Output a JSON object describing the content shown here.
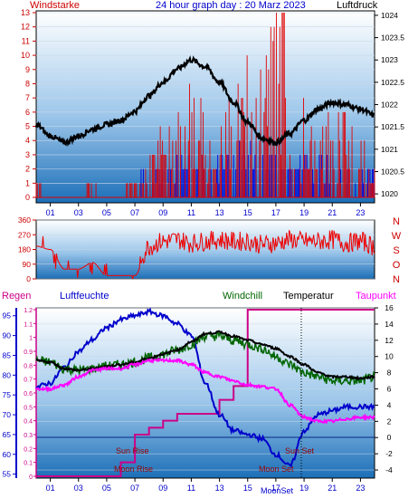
{
  "header": {
    "title": "24 hour graph day : 20 Marz 2023",
    "left_label": "Windstarke",
    "right_label": "Luftdruck"
  },
  "colors": {
    "wind_bar": "#e00000",
    "gust_bar": "#0000dd",
    "pressure": "#000000",
    "direction": "#ee0000",
    "humidity": "#0000cc",
    "temperature": "#000000",
    "windchill": "#006600",
    "dewpoint": "#ff00ff",
    "rain": "#cc0088",
    "axis_red": "#cc0000",
    "axis_blue": "#0000cc",
    "axis_magenta": "#cc0088",
    "bg_top": "#ffffff",
    "bg_bottom": "#1c6fb8"
  },
  "time_ticks": [
    "01",
    "03",
    "05",
    "07",
    "09",
    "11",
    "13",
    "15",
    "17",
    "19",
    "21",
    "23"
  ],
  "chart_data": [
    {
      "type": "line",
      "title": "24 hour graph day : 20 Marz 2023",
      "left_axis": {
        "label": "Windstarke",
        "ticks": [
          "0",
          "1",
          "2",
          "3",
          "4",
          "5",
          "6",
          "7",
          "8",
          "9",
          "10",
          "11",
          "12",
          "13"
        ],
        "range": [
          0,
          13
        ]
      },
      "right_axis": {
        "label": "Luftdruck",
        "ticks": [
          "1020",
          "1020.5",
          "1021",
          "1021.5",
          "1022",
          "1022.5",
          "1023",
          "1023.5",
          "1024"
        ],
        "range": [
          1019.8,
          1024.1
        ]
      },
      "x": [
        0,
        1,
        2,
        3,
        4,
        5,
        6,
        7,
        8,
        9,
        10,
        11,
        12,
        13,
        14,
        15,
        16,
        17,
        18,
        19,
        20,
        21,
        22,
        23,
        24
      ],
      "series": [
        {
          "name": "Luftdruck",
          "values": [
            1021.55,
            1021.3,
            1021.15,
            1021.3,
            1021.45,
            1021.55,
            1021.65,
            1021.85,
            1022.2,
            1022.5,
            1022.8,
            1023.0,
            1022.85,
            1022.5,
            1022.05,
            1021.6,
            1021.25,
            1021.15,
            1021.35,
            1021.65,
            1021.9,
            1022.05,
            1022.0,
            1021.9,
            1021.75
          ]
        },
        {
          "name": "Windstarke",
          "values": [
            1,
            0,
            0,
            0,
            1,
            0,
            0,
            1,
            2,
            3,
            4,
            5,
            4,
            3,
            5,
            6,
            7,
            8,
            5,
            4,
            3,
            4,
            4,
            3,
            2
          ]
        },
        {
          "name": "Boe",
          "values": [
            0,
            0,
            0,
            0,
            0,
            0,
            0,
            1,
            1,
            2,
            2,
            3,
            2,
            2,
            3,
            3,
            3,
            3,
            2,
            2,
            2,
            2,
            1,
            1,
            1
          ]
        }
      ]
    },
    {
      "type": "line",
      "left_axis": {
        "ticks": [
          "0",
          "90",
          "180",
          "270",
          "360"
        ],
        "range": [
          0,
          360
        ]
      },
      "right_axis": {
        "ticks": [
          "N",
          "W",
          "S",
          "O",
          "N"
        ]
      },
      "x": [
        0,
        1,
        2,
        3,
        4,
        5,
        6,
        7,
        8,
        9,
        10,
        11,
        12,
        13,
        14,
        15,
        16,
        17,
        18,
        19,
        20,
        21,
        22,
        23,
        24
      ],
      "series": [
        {
          "name": "Windrichtung",
          "values": [
            200,
            180,
            60,
            60,
            100,
            20,
            20,
            20,
            200,
            230,
            240,
            220,
            230,
            240,
            230,
            230,
            210,
            220,
            240,
            230,
            230,
            240,
            220,
            230,
            200
          ]
        }
      ]
    },
    {
      "type": "line",
      "top_labels": {
        "rain": "Regen",
        "humidity": "Luftfeuchte",
        "windchill": "Windchill",
        "temperature": "Temperatur",
        "dewpoint": "Taupunkt"
      },
      "rain_axis": {
        "ticks": [
          "0",
          "0.1",
          "0.2",
          "0.3",
          "0.4",
          "0.5",
          "0.6",
          "0.7",
          "0.8",
          "0.9",
          "1",
          "1.1",
          "1.2"
        ],
        "range": [
          0,
          1.2
        ]
      },
      "humidity_axis": {
        "ticks": [
          "55",
          "60",
          "65",
          "70",
          "75",
          "80",
          "85",
          "90",
          "95"
        ],
        "range": [
          54,
          97
        ]
      },
      "temp_axis": {
        "ticks": [
          "-4",
          "-2",
          "0",
          "2",
          "4",
          "6",
          "8",
          "10",
          "12",
          "14",
          "16"
        ],
        "range": [
          -5,
          16
        ]
      },
      "annotations": [
        "Sun Rise",
        "Moon Rise",
        "Sun Set",
        "Moon Set",
        "MoonSet"
      ],
      "x": [
        0,
        1,
        2,
        3,
        4,
        5,
        6,
        7,
        8,
        9,
        10,
        11,
        12,
        13,
        14,
        15,
        16,
        17,
        18,
        19,
        20,
        21,
        22,
        23,
        24
      ],
      "series": [
        {
          "name": "Luftfeuchte",
          "values": [
            77,
            78,
            82,
            86,
            89,
            92,
            94,
            95,
            96,
            95,
            93,
            90,
            78,
            70,
            66,
            65,
            64,
            60,
            57,
            66,
            70,
            71,
            72,
            72,
            72
          ]
        },
        {
          "name": "Temperatur",
          "values": [
            9.5,
            9.3,
            8.5,
            8.3,
            8.5,
            8.8,
            9,
            9.3,
            9.8,
            10.3,
            10.8,
            11.8,
            12.8,
            13,
            12.5,
            12,
            11.5,
            11,
            10,
            9,
            8,
            7.5,
            7.5,
            7.3,
            7.5
          ]
        },
        {
          "name": "Windchill",
          "values": [
            9.5,
            9.3,
            8.5,
            8.3,
            8.5,
            8.8,
            9,
            9.3,
            9.8,
            10.3,
            10.8,
            11.5,
            12.5,
            12.5,
            12,
            11.5,
            11,
            10,
            9,
            8,
            7.5,
            7,
            7,
            7,
            7.5
          ]
        },
        {
          "name": "Taupunkt",
          "values": [
            6,
            6,
            6.5,
            7.5,
            8.3,
            8.5,
            8.5,
            9,
            9.5,
            9.5,
            9.5,
            9,
            8,
            7.5,
            7,
            6.5,
            6.3,
            6,
            4,
            2.5,
            2,
            2,
            2.3,
            2.5,
            2.5
          ]
        },
        {
          "name": "Regen",
          "values": [
            0,
            0,
            0,
            0,
            0,
            0,
            0.1,
            0.3,
            0.35,
            0.4,
            0.45,
            0.45,
            0.45,
            0.55,
            0.65,
            1.2,
            1.2,
            1.2,
            1.2,
            1.2,
            1.2,
            1.2,
            1.2,
            1.2,
            1.2
          ]
        }
      ]
    }
  ]
}
